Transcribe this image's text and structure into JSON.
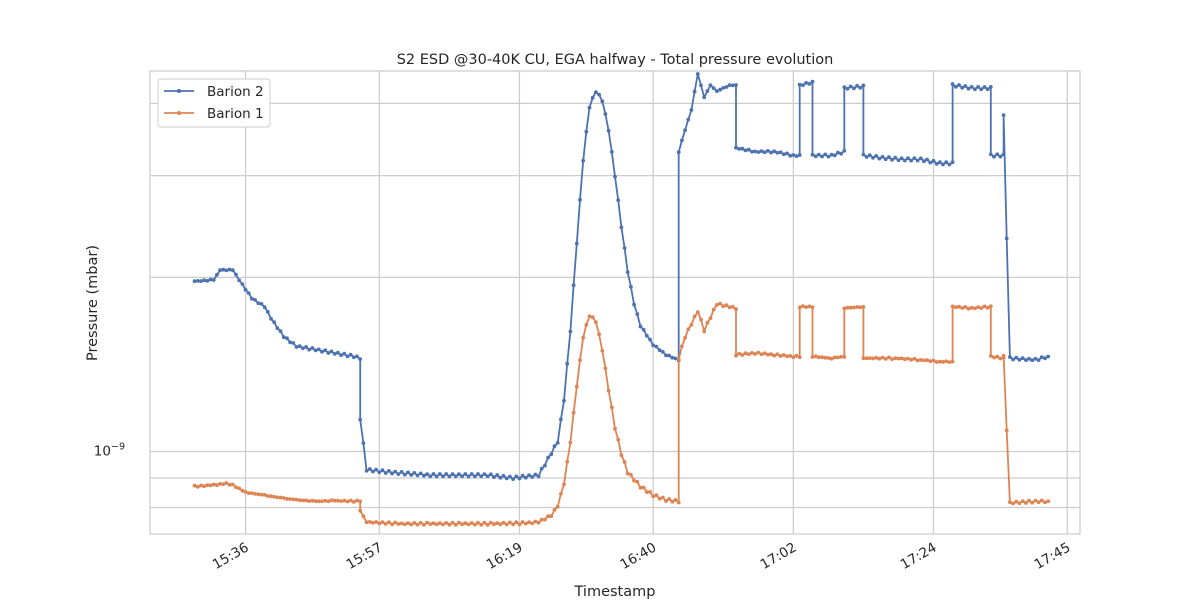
{
  "chart_data": {
    "type": "line",
    "title": "S2 ESD @30-40K CU, EGA halfway - Total pressure evolution",
    "xlabel": "Timestamp",
    "ylabel": "Pressure (mbar)",
    "y_scale": "log",
    "y_major_tick_label": "10^-9",
    "xlim": [
      "15:21",
      "17:47"
    ],
    "ylim": [
      7.2e-10,
      4.55e-09
    ],
    "x_ticks": [
      "15:36",
      "15:57",
      "16:19",
      "16:40",
      "17:02",
      "17:24",
      "17:45"
    ],
    "grid": true,
    "legend_position": "top-left",
    "series": [
      {
        "name": "Barion 2",
        "color": "#4c72b0",
        "points": [
          [
            "15:28",
            1.97e-09
          ],
          [
            "15:31",
            1.98e-09
          ],
          [
            "15:32",
            2.06e-09
          ],
          [
            "15:34",
            2.06e-09
          ],
          [
            "15:35",
            1.98e-09
          ],
          [
            "15:37",
            1.84e-09
          ],
          [
            "15:39",
            1.78e-09
          ],
          [
            "15:40",
            1.7e-09
          ],
          [
            "15:42",
            1.58e-09
          ],
          [
            "15:44",
            1.52e-09
          ],
          [
            "15:47",
            1.5e-09
          ],
          [
            "15:50",
            1.48e-09
          ],
          [
            "15:53",
            1.46e-09
          ],
          [
            "15:54",
            1.45e-09
          ],
          [
            "15:54",
            1.14e-09
          ],
          [
            "15:55",
            9.3e-10
          ],
          [
            "15:59",
            9.2e-10
          ],
          [
            "16:05",
            9.1e-10
          ],
          [
            "16:10",
            9.1e-10
          ],
          [
            "16:14",
            9.1e-10
          ],
          [
            "16:18",
            9e-10
          ],
          [
            "16:22",
            9.1e-10
          ],
          [
            "16:23",
            9.5e-10
          ],
          [
            "16:25",
            1.04e-09
          ],
          [
            "16:26",
            1.23e-09
          ],
          [
            "16:27",
            1.62e-09
          ],
          [
            "16:28",
            2.3e-09
          ],
          [
            "16:29",
            3.2e-09
          ],
          [
            "16:30",
            3.95e-09
          ],
          [
            "16:31",
            4.2e-09
          ],
          [
            "16:32",
            4.05e-09
          ],
          [
            "16:33",
            3.6e-09
          ],
          [
            "16:34",
            3e-09
          ],
          [
            "16:35",
            2.45e-09
          ],
          [
            "16:36",
            2.05e-09
          ],
          [
            "16:37",
            1.8e-09
          ],
          [
            "16:38",
            1.65e-09
          ],
          [
            "16:40",
            1.53e-09
          ],
          [
            "16:42",
            1.47e-09
          ],
          [
            "16:44",
            1.44e-09
          ],
          [
            "16:44",
            3.3e-09
          ],
          [
            "16:45",
            3.6e-09
          ],
          [
            "16:46",
            3.9e-09
          ],
          [
            "16:47",
            4.5e-09
          ],
          [
            "16:48",
            4.1e-09
          ],
          [
            "16:49",
            4.3e-09
          ],
          [
            "16:50",
            4.2e-09
          ],
          [
            "16:52",
            4.3e-09
          ],
          [
            "16:53",
            4.3e-09
          ],
          [
            "16:53",
            3.35e-09
          ],
          [
            "16:56",
            3.3e-09
          ],
          [
            "16:59",
            3.3e-09
          ],
          [
            "17:02",
            3.25e-09
          ],
          [
            "17:03",
            3.25e-09
          ],
          [
            "17:03",
            4.3e-09
          ],
          [
            "17:05",
            4.35e-09
          ],
          [
            "17:05",
            3.25e-09
          ],
          [
            "17:08",
            3.25e-09
          ],
          [
            "17:10",
            3.3e-09
          ],
          [
            "17:10",
            4.25e-09
          ],
          [
            "17:13",
            4.28e-09
          ],
          [
            "17:13",
            3.25e-09
          ],
          [
            "17:16",
            3.22e-09
          ],
          [
            "17:19",
            3.2e-09
          ],
          [
            "17:22",
            3.2e-09
          ],
          [
            "17:25",
            3.15e-09
          ],
          [
            "17:27",
            3.15e-09
          ],
          [
            "17:27",
            4.3e-09
          ],
          [
            "17:30",
            4.25e-09
          ],
          [
            "17:33",
            4.25e-09
          ],
          [
            "17:33",
            3.25e-09
          ],
          [
            "17:35",
            3.25e-09
          ],
          [
            "17:35",
            3.8e-09
          ],
          [
            "17:36",
            1.45e-09
          ],
          [
            "17:40",
            1.44e-09
          ],
          [
            "17:42",
            1.46e-09
          ]
        ]
      },
      {
        "name": "Barion 1",
        "color": "#dd8452",
        "points": [
          [
            "15:28",
            8.7e-10
          ],
          [
            "15:31",
            8.75e-10
          ],
          [
            "15:33",
            8.8e-10
          ],
          [
            "15:34",
            8.75e-10
          ],
          [
            "15:36",
            8.5e-10
          ],
          [
            "15:39",
            8.4e-10
          ],
          [
            "15:42",
            8.3e-10
          ],
          [
            "15:44",
            8.25e-10
          ],
          [
            "15:47",
            8.2e-10
          ],
          [
            "15:50",
            8.22e-10
          ],
          [
            "15:54",
            8.2e-10
          ],
          [
            "15:54",
            7.9e-10
          ],
          [
            "15:55",
            7.55e-10
          ],
          [
            "16:00",
            7.5e-10
          ],
          [
            "16:05",
            7.5e-10
          ],
          [
            "16:10",
            7.5e-10
          ],
          [
            "16:15",
            7.5e-10
          ],
          [
            "16:20",
            7.52e-10
          ],
          [
            "16:22",
            7.55e-10
          ],
          [
            "16:24",
            7.75e-10
          ],
          [
            "16:25",
            8.05e-10
          ],
          [
            "16:26",
            8.8e-10
          ],
          [
            "16:27",
            1.04e-09
          ],
          [
            "16:28",
            1.3e-09
          ],
          [
            "16:29",
            1.58e-09
          ],
          [
            "16:30",
            1.72e-09
          ],
          [
            "16:31",
            1.68e-09
          ],
          [
            "16:32",
            1.5e-09
          ],
          [
            "16:33",
            1.28e-09
          ],
          [
            "16:34",
            1.1e-09
          ],
          [
            "16:35",
            9.9e-10
          ],
          [
            "16:36",
            9.2e-10
          ],
          [
            "16:38",
            8.7e-10
          ],
          [
            "16:40",
            8.4e-10
          ],
          [
            "16:42",
            8.25e-10
          ],
          [
            "16:44",
            8.2e-10
          ],
          [
            "16:44",
            1.45e-09
          ],
          [
            "16:45",
            1.58e-09
          ],
          [
            "16:47",
            1.75e-09
          ],
          [
            "16:48",
            1.62e-09
          ],
          [
            "16:50",
            1.8e-09
          ],
          [
            "16:53",
            1.77e-09
          ],
          [
            "16:53",
            1.47e-09
          ],
          [
            "16:56",
            1.48e-09
          ],
          [
            "16:59",
            1.47e-09
          ],
          [
            "17:02",
            1.46e-09
          ],
          [
            "17:03",
            1.46e-09
          ],
          [
            "17:03",
            1.78e-09
          ],
          [
            "17:05",
            1.78e-09
          ],
          [
            "17:05",
            1.46e-09
          ],
          [
            "17:08",
            1.45e-09
          ],
          [
            "17:10",
            1.46e-09
          ],
          [
            "17:10",
            1.77e-09
          ],
          [
            "17:13",
            1.78e-09
          ],
          [
            "17:13",
            1.45e-09
          ],
          [
            "17:18",
            1.45e-09
          ],
          [
            "17:22",
            1.44e-09
          ],
          [
            "17:25",
            1.43e-09
          ],
          [
            "17:27",
            1.43e-09
          ],
          [
            "17:27",
            1.78e-09
          ],
          [
            "17:30",
            1.77e-09
          ],
          [
            "17:33",
            1.78e-09
          ],
          [
            "17:33",
            1.46e-09
          ],
          [
            "17:35",
            1.45e-09
          ],
          [
            "17:35",
            1.46e-09
          ],
          [
            "17:36",
            8.15e-10
          ],
          [
            "17:40",
            8.2e-10
          ],
          [
            "17:42",
            8.2e-10
          ]
        ]
      }
    ]
  }
}
